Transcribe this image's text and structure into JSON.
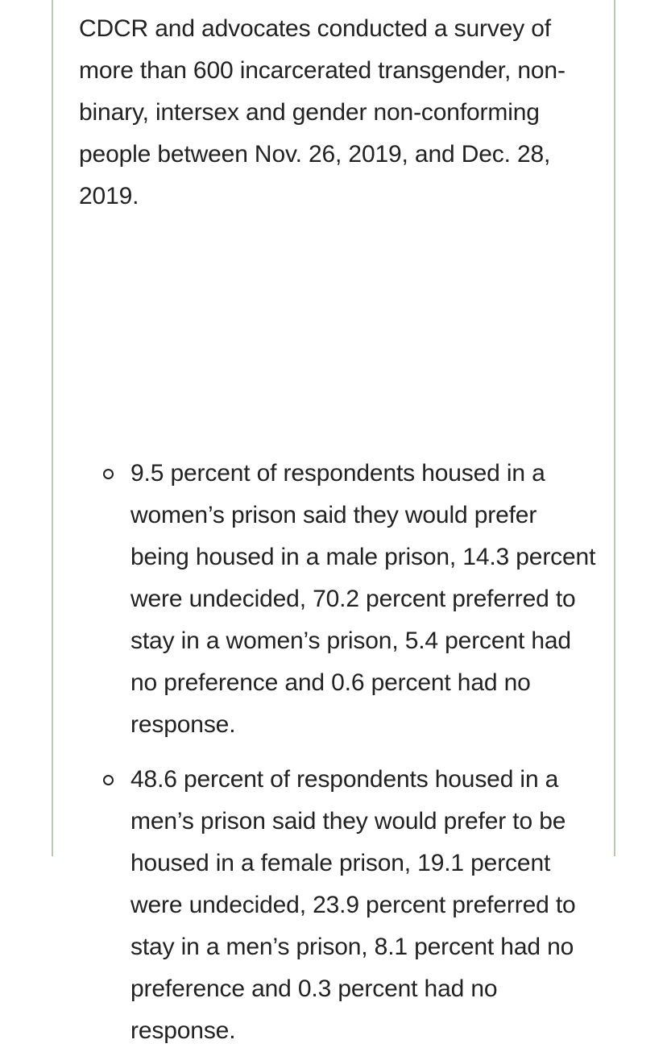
{
  "article": {
    "intro": "CDCR and advocates conducted a survey of more than 600 incarcerated transgender, non-binary, intersex and gender non-conforming people between Nov. 26, 2019, and Dec. 28, 2019.",
    "bullets": [
      {
        "text": "9.5 percent of respondents housed in a women’s prison said they would prefer being housed in a male prison, 14.3 percent were undecided, 70.2 percent preferred to stay in a women’s prison, 5.4 percent had no preference and 0.6 percent had no response."
      },
      {
        "text": "48.6 percent of respondents housed in a men’s prison said they would prefer to be housed in a female prison, 19.1 percent were undecided, 23.9 percent preferred to stay in a men’s prison, 8.1 percent had no preference and 0.3 percent had no response."
      }
    ]
  },
  "colors": {
    "border": "#b7c9b3",
    "text": "#222222",
    "background": "#ffffff"
  }
}
